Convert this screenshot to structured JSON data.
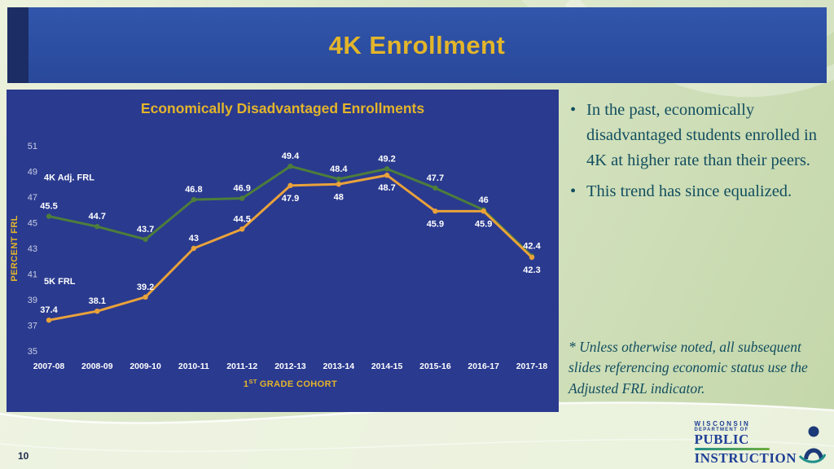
{
  "slide": {
    "title": "4K Enrollment",
    "page_number": "10"
  },
  "chart_data": {
    "type": "line",
    "title": "Economically Disadvantaged Enrollments",
    "xlabel": "1ST GRADE COHORT",
    "ylabel": "PERCENT FRL",
    "categories": [
      "2007-08",
      "2008-09",
      "2009-10",
      "2010-11",
      "2011-12",
      "2012-13",
      "2013-14",
      "2014-15",
      "2015-16",
      "2016-17",
      "2017-18"
    ],
    "series": [
      {
        "name": "4K Adj. FRL",
        "color": "#4d7d3b",
        "values": [
          45.5,
          44.7,
          43.7,
          46.8,
          46.9,
          49.4,
          48.4,
          49.2,
          47.7,
          46,
          42.4
        ],
        "label_positions": [
          "above",
          "above",
          "above",
          "above",
          "above",
          "above",
          "above",
          "above",
          "above",
          "above",
          "above"
        ]
      },
      {
        "name": "5K FRL",
        "color": "#e9a23a",
        "values": [
          37.4,
          38.1,
          39.2,
          43,
          44.5,
          47.9,
          48,
          48.7,
          45.9,
          45.9,
          42.3
        ],
        "label_positions": [
          "above",
          "above",
          "above",
          "above",
          "above",
          "below",
          "below",
          "below",
          "below",
          "below",
          "below"
        ]
      }
    ],
    "ylim": [
      35,
      51
    ],
    "yticks": [
      51,
      49,
      47,
      45,
      43,
      41,
      39,
      37,
      35
    ],
    "grid": false,
    "legend_position": "inline-annotations",
    "plot_background": "#2a3a8f",
    "accent_color": "#e3b52a"
  },
  "bullets": [
    "In the past, economically disadvantaged students enrolled in 4K at higher rate than their peers.",
    "This trend has since equalized."
  ],
  "footnote": "* Unless otherwise noted, all subsequent slides referencing economic status use the Adjusted FRL indicator.",
  "logo": {
    "line1": "WISCONSIN",
    "line2": "DEPARTMENT OF",
    "line3": "PUBLIC",
    "line4": "INSTRUCTION"
  }
}
